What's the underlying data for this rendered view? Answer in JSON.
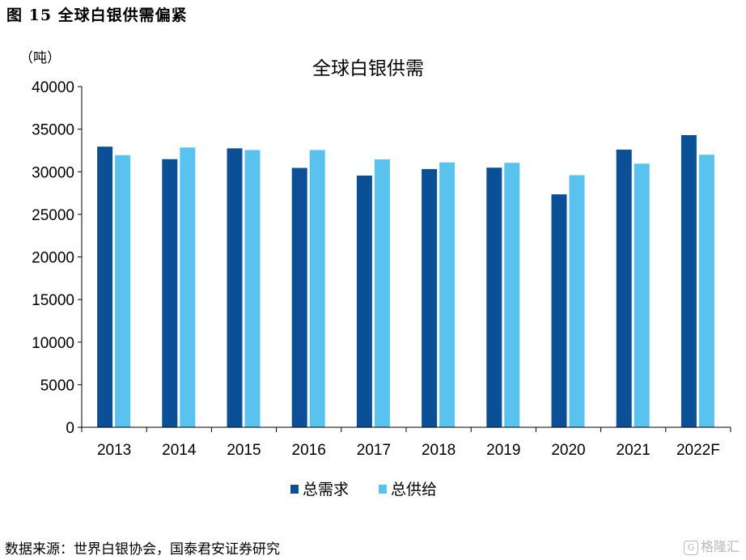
{
  "figure_title": "图 15 全球白银供需偏紧",
  "source": "数据来源：世界白银协会，国泰君安证券研究",
  "watermark": {
    "icon": "G",
    "text": "格隆汇"
  },
  "colors": {
    "demand": "#0b4f96",
    "supply": "#59c2ee"
  },
  "chart_data": {
    "type": "bar",
    "title": "全球白银供需",
    "ylabel": "（吨）",
    "xlabel": "",
    "ylim": [
      0,
      40000
    ],
    "yticks": [
      0,
      5000,
      10000,
      15000,
      20000,
      25000,
      30000,
      35000,
      40000
    ],
    "categories": [
      "2013",
      "2014",
      "2015",
      "2016",
      "2017",
      "2018",
      "2019",
      "2020",
      "2021",
      "2022F"
    ],
    "series": [
      {
        "name": "总需求",
        "values": [
          32950,
          31480,
          32750,
          30450,
          29550,
          30320,
          30480,
          27350,
          32600,
          34300
        ]
      },
      {
        "name": "总供给",
        "values": [
          31950,
          32850,
          32550,
          32550,
          31450,
          31100,
          31050,
          29600,
          30950,
          32000
        ]
      }
    ],
    "legend": "bottom",
    "grid": false
  }
}
